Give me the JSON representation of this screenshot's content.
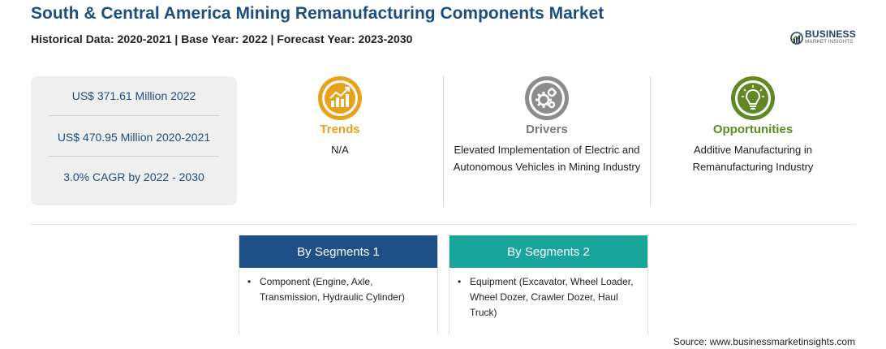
{
  "header": {
    "title": "South & Central America Mining Remanufacturing Components Market",
    "subtitle": "Historical Data: 2020-2021 | Base Year: 2022 | Forecast Year: 2023-2030"
  },
  "logo": {
    "main": "BUSINESS",
    "sub": "MARKET INSIGHTS"
  },
  "stats": [
    "US$ 371.61 Million 2022",
    "US$ 470.95 Million 2020-2021",
    "3.0% CAGR by 2022 - 2030"
  ],
  "columns": {
    "trends": {
      "heading": "Trends",
      "text": "N/A",
      "color": "#e8a11a",
      "icon": "trend-chart-icon"
    },
    "drivers": {
      "heading": "Drivers",
      "text": "Elevated Implementation of Electric and Autonomous Vehicles in Mining Industry",
      "color": "#888888",
      "icon": "gears-icon"
    },
    "opportunities": {
      "heading": "Opportunities",
      "text": "Additive Manufacturing in Remanufacturing Industry",
      "color": "#5f8a23",
      "icon": "lightbulb-icon"
    }
  },
  "segments": [
    {
      "heading": "By Segments 1",
      "item": "Component (Engine, Axle, Transmission, Hydraulic Cylinder)",
      "color": "#1e4f86"
    },
    {
      "heading": "By Segments 2",
      "item": "Equipment (Excavator, Wheel Loader, Wheel Dozer, Crawler Dozer, Haul Truck)",
      "color": "#1aa59c"
    }
  ],
  "source": "Source: www.businessmarketinsights.com"
}
